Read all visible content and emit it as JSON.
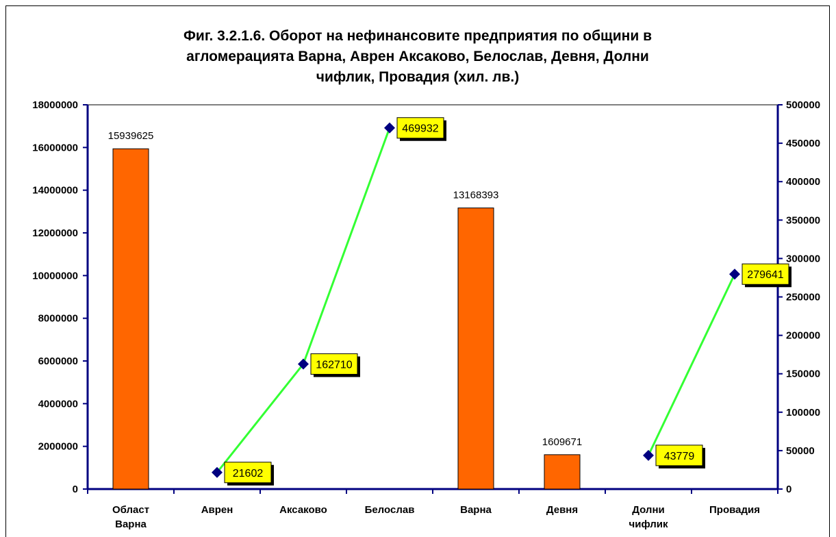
{
  "chart_data": {
    "type": "bar_line",
    "title": "Фиг. 3.2.1.6. Оборот на нефинансовите предприятия по общини в агломерацията Варна, Аврен Аксаково, Белослав, Девня, Долни чифлик, Провадия (хил. лв.)",
    "categories": [
      "Област Варна",
      "Аврен",
      "Аксаково",
      "Белослав",
      "Варна",
      "Девня",
      "Долни чифлик",
      "Провадия"
    ],
    "series": [
      {
        "type": "bar",
        "color": "#ff6600",
        "values": [
          15939625,
          null,
          null,
          null,
          13168393,
          1609671,
          null,
          null
        ]
      },
      {
        "type": "line",
        "axis": "y2",
        "color": "#33ff33",
        "marker_color": "#000080",
        "label_background": "#ffff00",
        "values": [
          null,
          21602,
          162710,
          469932,
          null,
          null,
          43779,
          279641
        ]
      }
    ],
    "ylim": [
      0,
      18000000
    ],
    "yticks": [
      0,
      2000000,
      4000000,
      6000000,
      8000000,
      10000000,
      12000000,
      14000000,
      16000000,
      18000000
    ],
    "y2lim": [
      0,
      500000
    ],
    "y2ticks": [
      0,
      50000,
      100000,
      150000,
      200000,
      250000,
      300000,
      350000,
      400000,
      450000,
      500000
    ]
  }
}
